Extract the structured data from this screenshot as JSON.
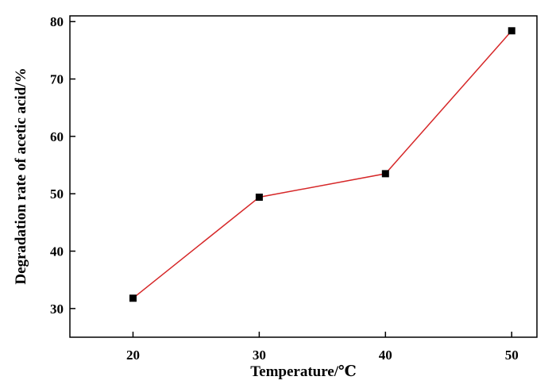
{
  "chart_data": {
    "type": "line",
    "title": "",
    "xlabel": "Temperature/℃",
    "ylabel": "Degradation rate of acetic acid/%",
    "xlim": [
      15,
      52
    ],
    "ylim": [
      25,
      81
    ],
    "xticks": [
      20,
      30,
      40,
      50
    ],
    "yticks": [
      30,
      40,
      50,
      60,
      70,
      80
    ],
    "grid": false,
    "series": [
      {
        "x": [
          20,
          30,
          40,
          50
        ],
        "y": [
          31.8,
          49.4,
          53.5,
          78.4
        ],
        "line_color": "#d62728",
        "marker": "square",
        "marker_color": "#000000"
      }
    ]
  }
}
